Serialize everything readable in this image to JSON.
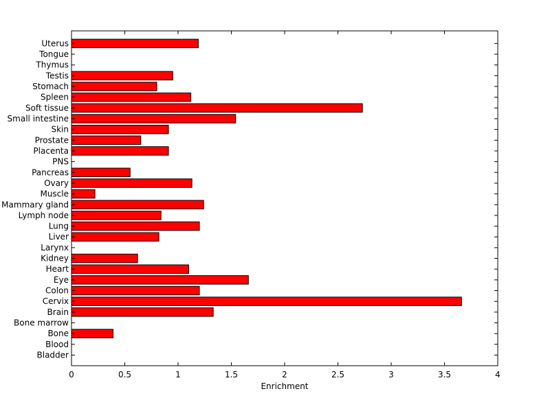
{
  "chart_data": {
    "type": "bar",
    "orientation": "horizontal",
    "xlabel": "Enrichment",
    "ylabel": "",
    "xlim": [
      0,
      4
    ],
    "xticks": [
      "0",
      "0.5",
      "1",
      "1.5",
      "2",
      "2.5",
      "3",
      "3.5",
      "4"
    ],
    "grid": false,
    "bar_color": "#ff0000",
    "categories": [
      "Bladder",
      "Blood",
      "Bone",
      "Bone marrow",
      "Brain",
      "Cervix",
      "Colon",
      "Eye",
      "Heart",
      "Kidney",
      "Larynx",
      "Liver",
      "Lung",
      "Lymph node",
      "Mammary gland",
      "Muscle",
      "Ovary",
      "Pancreas",
      "PNS",
      "Placenta",
      "Prostate",
      "Skin",
      "Small intestine",
      "Soft tissue",
      "Spleen",
      "Stomach",
      "Testis",
      "Thymus",
      "Tongue",
      "Uterus"
    ],
    "values": [
      0,
      0,
      0.39,
      0,
      1.33,
      3.66,
      1.2,
      1.66,
      1.1,
      0.62,
      0,
      0.82,
      1.2,
      0.84,
      1.24,
      0.22,
      1.13,
      0.55,
      0,
      0.91,
      0.65,
      0.91,
      1.54,
      2.73,
      1.12,
      0.8,
      0.95,
      0,
      0,
      1.19
    ]
  }
}
